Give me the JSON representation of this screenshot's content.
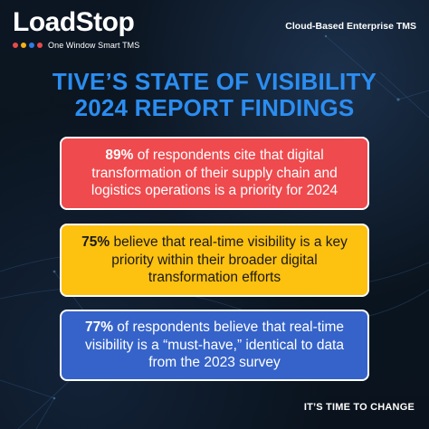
{
  "brand": {
    "name": "LoadStop",
    "tagline": "One Window Smart TMS",
    "dot_colors": [
      "#e84a4a",
      "#f3b21a",
      "#2f7de0",
      "#e84a4a"
    ]
  },
  "header": {
    "right_text": "Cloud-Based Enterprise TMS"
  },
  "headline": {
    "line1": "TIVE’S STATE OF VISIBILITY",
    "line2": "2024 REPORT FINDINGS"
  },
  "cards": [
    {
      "percent": "89%",
      "text": " of respondents cite that digital transformation of their supply chain and logistics operations is a priority for 2024",
      "color": "#ef4a4e"
    },
    {
      "percent": "75%",
      "text": " believe that real-time visibility is a key priority within their broader digital transformation efforts",
      "color": "#fdc10f"
    },
    {
      "percent": "77%",
      "text": " of respondents believe that real-time visibility is a “must-have,” identical to data from the 2023 survey",
      "color": "#3563c9"
    }
  ],
  "footer": {
    "text": "IT’S TIME TO CHANGE"
  },
  "colors": {
    "headline": "#2b8df0",
    "background": "#0b1520"
  }
}
